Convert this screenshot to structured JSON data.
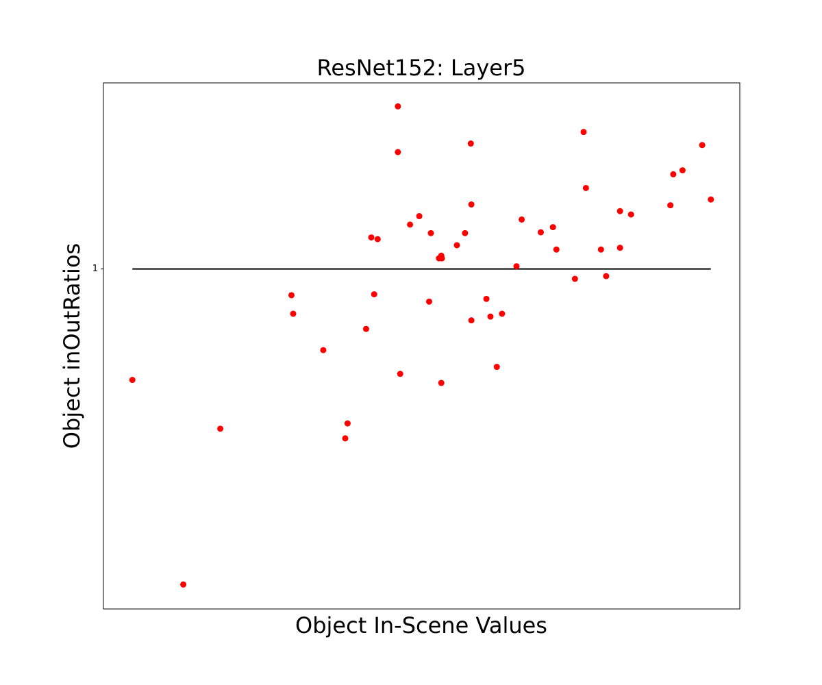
{
  "chart_data": {
    "type": "scatter",
    "title": "ResNet152: Layer5",
    "xlabel": "Object In-Scene Values",
    "ylabel": "Object inOutRatios",
    "color": "#ff0000",
    "yscale": "log",
    "xlim": [
      -0.05,
      1.05
    ],
    "ylim": [
      0.683,
      1.232
    ],
    "yticks": [
      1
    ],
    "reference_line": {
      "color": "#000000",
      "x": [
        0,
        1
      ],
      "y": [
        1,
        1
      ]
    },
    "x": [
      0.0,
      0.088,
      0.152,
      0.275,
      0.278,
      0.33,
      0.368,
      0.372,
      0.404,
      0.413,
      0.418,
      0.424,
      0.459,
      0.459,
      0.463,
      0.48,
      0.496,
      0.513,
      0.516,
      0.53,
      0.534,
      0.535,
      0.534,
      0.561,
      0.575,
      0.585,
      0.586,
      0.586,
      0.612,
      0.619,
      0.63,
      0.639,
      0.664,
      0.673,
      0.706,
      0.727,
      0.733,
      0.765,
      0.78,
      0.784,
      0.81,
      0.819,
      0.843,
      0.843,
      0.862,
      0.93,
      0.935,
      0.951,
      0.985,
      1.0
    ],
    "values": [
      0.883,
      0.702,
      0.836,
      0.971,
      0.951,
      0.913,
      0.827,
      0.841,
      0.935,
      1.036,
      0.972,
      1.034,
      1.2,
      1.14,
      0.889,
      1.051,
      1.061,
      0.964,
      1.041,
      1.012,
      1.015,
      1.012,
      0.88,
      1.027,
      1.041,
      1.151,
      1.075,
      0.944,
      0.967,
      0.948,
      0.896,
      0.951,
      1.003,
      1.057,
      1.042,
      1.048,
      1.022,
      0.989,
      1.166,
      1.095,
      1.022,
      0.992,
      1.067,
      1.024,
      1.063,
      1.074,
      1.112,
      1.117,
      1.149,
      1.081
    ]
  }
}
